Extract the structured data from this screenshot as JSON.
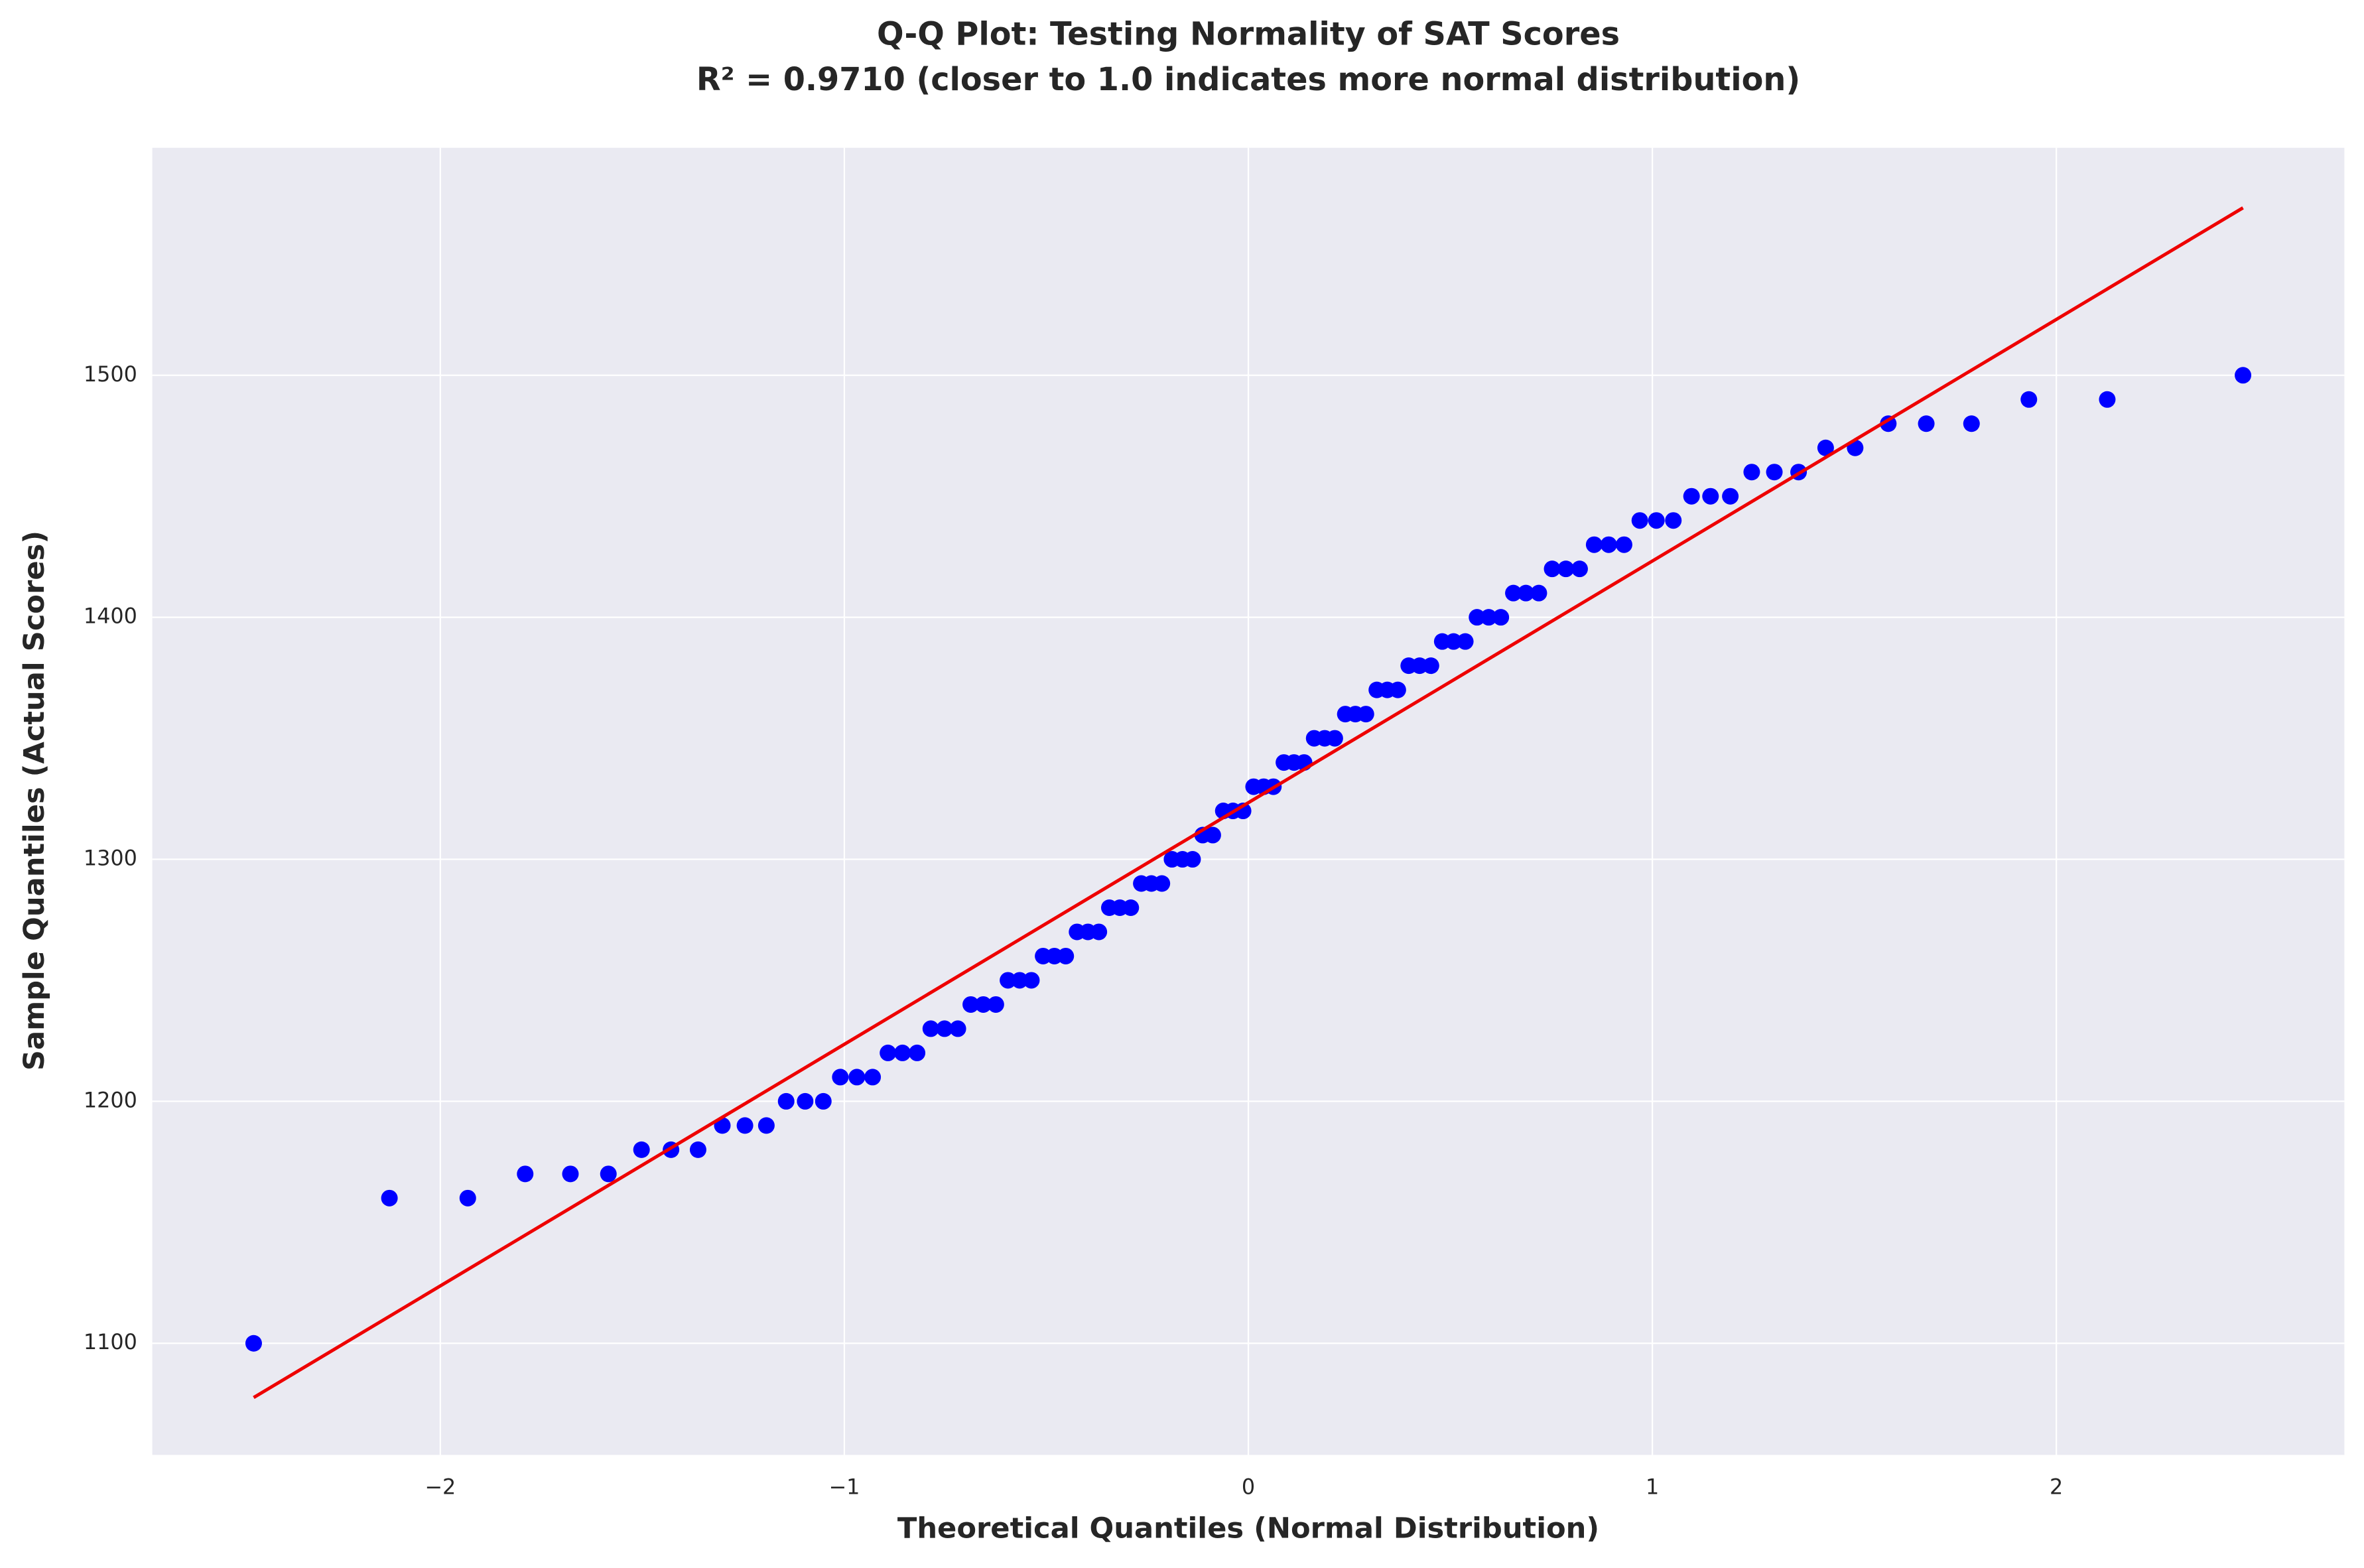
{
  "chart_data": {
    "type": "scatter",
    "title": "Q-Q Plot: Testing Normality of SAT Scores",
    "subtitle": "R² = 0.9710 (closer to 1.0 indicates more normal distribution)",
    "x_label": "Theoretical Quantiles (Normal Distribution)",
    "y_label": "Sample Quantiles (Actual Scores)",
    "xlim": [
      -2.713,
      2.713
    ],
    "ylim": [
      1053.9,
      1594
    ],
    "xticks": [
      {
        "value": -2,
        "label": "−2"
      },
      {
        "value": -1,
        "label": "−1"
      },
      0,
      1,
      2
    ],
    "yticks": [
      1100,
      1200,
      1300,
      1400,
      1500
    ],
    "grid": true,
    "series": [
      {
        "name": "Sample",
        "color": "#0000ff",
        "x": [
          -2.462,
          -2.126,
          -1.932,
          -1.79,
          -1.678,
          -1.584,
          -1.502,
          -1.429,
          -1.362,
          -1.302,
          -1.246,
          -1.193,
          -1.144,
          -1.097,
          -1.052,
          -1.01,
          -0.969,
          -0.93,
          -0.892,
          -0.856,
          -0.82,
          -0.786,
          -0.752,
          -0.719,
          -0.687,
          -0.656,
          -0.625,
          -0.595,
          -0.566,
          -0.537,
          -0.508,
          -0.48,
          -0.452,
          -0.424,
          -0.397,
          -0.37,
          -0.344,
          -0.318,
          -0.291,
          -0.265,
          -0.24,
          -0.214,
          -0.189,
          -0.163,
          -0.138,
          -0.113,
          -0.088,
          -0.062,
          -0.038,
          -0.013,
          0.013,
          0.038,
          0.062,
          0.088,
          0.113,
          0.138,
          0.163,
          0.189,
          0.214,
          0.24,
          0.265,
          0.291,
          0.318,
          0.344,
          0.37,
          0.397,
          0.424,
          0.452,
          0.48,
          0.508,
          0.537,
          0.566,
          0.595,
          0.625,
          0.656,
          0.687,
          0.719,
          0.752,
          0.786,
          0.82,
          0.856,
          0.892,
          0.93,
          0.969,
          1.01,
          1.052,
          1.097,
          1.144,
          1.193,
          1.246,
          1.302,
          1.362,
          1.429,
          1.502,
          1.584,
          1.678,
          1.79,
          1.932,
          2.126,
          2.462
        ],
        "values": [
          1100,
          1160,
          1160,
          1170,
          1170,
          1170,
          1180,
          1180,
          1180,
          1190,
          1190,
          1190,
          1200,
          1200,
          1200,
          1210,
          1210,
          1210,
          1220,
          1220,
          1220,
          1230,
          1230,
          1230,
          1240,
          1240,
          1240,
          1250,
          1250,
          1250,
          1260,
          1260,
          1260,
          1270,
          1270,
          1270,
          1280,
          1280,
          1280,
          1290,
          1290,
          1290,
          1300,
          1300,
          1300,
          1310,
          1310,
          1320,
          1320,
          1320,
          1330,
          1330,
          1330,
          1340,
          1340,
          1340,
          1350,
          1350,
          1350,
          1360,
          1360,
          1360,
          1370,
          1370,
          1370,
          1380,
          1380,
          1380,
          1390,
          1390,
          1390,
          1400,
          1400,
          1400,
          1410,
          1410,
          1410,
          1420,
          1420,
          1420,
          1430,
          1430,
          1430,
          1440,
          1440,
          1440,
          1450,
          1450,
          1450,
          1460,
          1460,
          1460,
          1470,
          1470,
          1480,
          1480,
          1480,
          1490,
          1490,
          1500
        ]
      },
      {
        "name": "Fit",
        "color": "#ee0000",
        "line": true,
        "x": [
          -2.462,
          2.462
        ],
        "values": [
          1077.6,
          1569.2
        ]
      }
    ]
  }
}
